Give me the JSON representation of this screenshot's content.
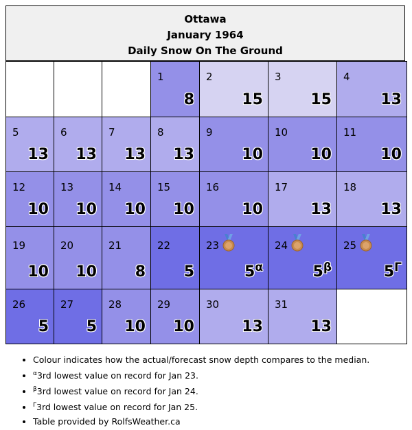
{
  "header": {
    "city": "Ottawa",
    "period": "January 1964",
    "subtitle": "Daily Snow On The Ground"
  },
  "colors": {
    "empty": "#ffffff",
    "light": "#d6d3f2",
    "medium_light": "#b0aced",
    "medium": "#9490e8",
    "dark": "#6f6ee5",
    "header_bg": "#f0f0f0"
  },
  "calendar": {
    "weeks": [
      [
        {
          "empty": true
        },
        {
          "empty": true
        },
        {
          "empty": true
        },
        {
          "day": "1",
          "value": "8",
          "color": "#9490e8"
        },
        {
          "day": "2",
          "value": "15",
          "color": "#d6d3f2"
        },
        {
          "day": "3",
          "value": "15",
          "color": "#d6d3f2"
        },
        {
          "day": "4",
          "value": "13",
          "color": "#b0aced"
        }
      ],
      [
        {
          "day": "5",
          "value": "13",
          "color": "#b0aced"
        },
        {
          "day": "6",
          "value": "13",
          "color": "#b0aced"
        },
        {
          "day": "7",
          "value": "13",
          "color": "#b0aced"
        },
        {
          "day": "8",
          "value": "13",
          "color": "#b0aced"
        },
        {
          "day": "9",
          "value": "10",
          "color": "#9490e8"
        },
        {
          "day": "10",
          "value": "10",
          "color": "#9490e8"
        },
        {
          "day": "11",
          "value": "10",
          "color": "#9490e8"
        }
      ],
      [
        {
          "day": "12",
          "value": "10",
          "color": "#9490e8"
        },
        {
          "day": "13",
          "value": "10",
          "color": "#9490e8"
        },
        {
          "day": "14",
          "value": "10",
          "color": "#9490e8"
        },
        {
          "day": "15",
          "value": "10",
          "color": "#9490e8"
        },
        {
          "day": "16",
          "value": "10",
          "color": "#9490e8"
        },
        {
          "day": "17",
          "value": "13",
          "color": "#b0aced"
        },
        {
          "day": "18",
          "value": "13",
          "color": "#b0aced"
        }
      ],
      [
        {
          "day": "19",
          "value": "10",
          "color": "#9490e8"
        },
        {
          "day": "20",
          "value": "10",
          "color": "#9490e8"
        },
        {
          "day": "21",
          "value": "8",
          "color": "#9490e8"
        },
        {
          "day": "22",
          "value": "5",
          "color": "#6f6ee5"
        },
        {
          "day": "23",
          "value": "5",
          "sup": "α",
          "medal": true,
          "color": "#6f6ee5"
        },
        {
          "day": "24",
          "value": "5",
          "sup": "β",
          "medal": true,
          "color": "#6f6ee5"
        },
        {
          "day": "25",
          "value": "5",
          "sup": "Γ",
          "medal": true,
          "color": "#6f6ee5"
        }
      ],
      [
        {
          "day": "26",
          "value": "5",
          "color": "#6f6ee5"
        },
        {
          "day": "27",
          "value": "5",
          "color": "#6f6ee5"
        },
        {
          "day": "28",
          "value": "10",
          "color": "#9490e8"
        },
        {
          "day": "29",
          "value": "10",
          "color": "#9490e8"
        },
        {
          "day": "30",
          "value": "13",
          "color": "#b0aced"
        },
        {
          "day": "31",
          "value": "13",
          "color": "#b0aced"
        },
        {
          "empty": true
        }
      ]
    ]
  },
  "notes": [
    {
      "mark": "",
      "text": "Colour indicates how the actual/forecast snow depth compares to the median."
    },
    {
      "mark": "α",
      "text": "3rd lowest value on record for Jan 23."
    },
    {
      "mark": "β",
      "text": "3rd lowest value on record for Jan 24."
    },
    {
      "mark": "Γ",
      "text": "3rd lowest value on record for Jan 25."
    },
    {
      "mark": "",
      "text": "Table provided by RolfsWeather.ca"
    }
  ]
}
